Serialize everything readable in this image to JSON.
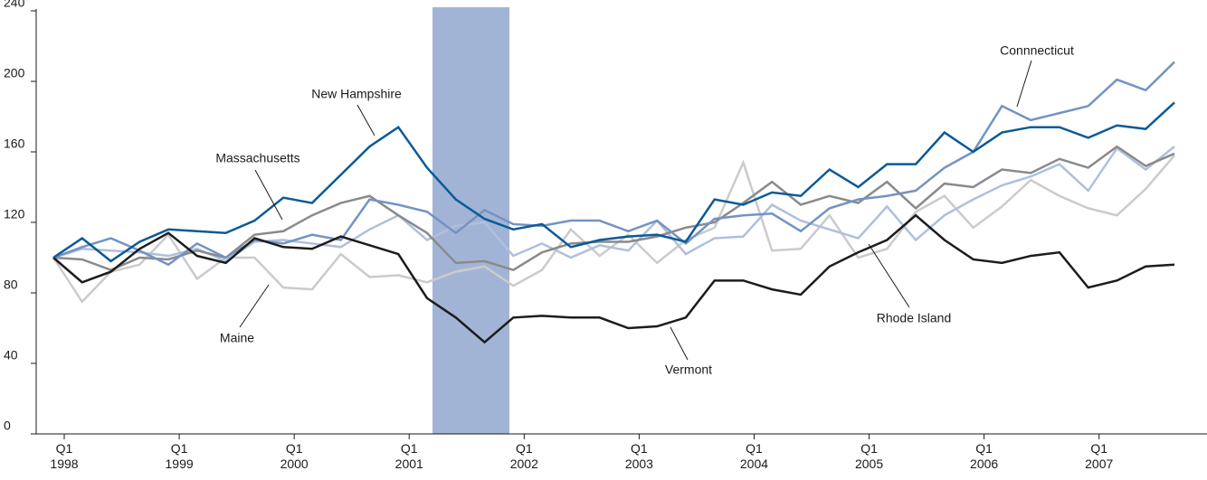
{
  "chart_data": {
    "type": "line",
    "categories": [
      "Q1 1998",
      null,
      null,
      null,
      "Q1 1999",
      null,
      null,
      null,
      "Q1 2000",
      null,
      null,
      null,
      "Q1 2001",
      null,
      null,
      null,
      "Q1 2002",
      null,
      null,
      null,
      "Q1 2003",
      null,
      null,
      null,
      "Q1 2004",
      null,
      null,
      null,
      "Q1 2005",
      null,
      null,
      null,
      "Q1 2006",
      null,
      null,
      null,
      "Q1 2007",
      null,
      null,
      null
    ],
    "ylim": [
      0,
      240
    ],
    "yticks": [
      0,
      40,
      80,
      120,
      160,
      200,
      240
    ],
    "series": [
      {
        "name": "New Hampshire",
        "color": "#0b5a97",
        "values": [
          100,
          111,
          98,
          109,
          116,
          115,
          114,
          121,
          134,
          131,
          147,
          163,
          174,
          151,
          133,
          122,
          116,
          119,
          106,
          110,
          112,
          113,
          109,
          133,
          130,
          137,
          135,
          150,
          140,
          153,
          153,
          171,
          160,
          171,
          174,
          174,
          168,
          175,
          173,
          188
        ]
      },
      {
        "name": "Connnecticut",
        "color": "#7393c4",
        "values": [
          100,
          106,
          111,
          104,
          96,
          108,
          100,
          110,
          108,
          113,
          110,
          133,
          130,
          126,
          114,
          127,
          119,
          118,
          121,
          121,
          115,
          121,
          108,
          122,
          124,
          125,
          115,
          128,
          133,
          135,
          138,
          151,
          160,
          186,
          178,
          182,
          186,
          201,
          195,
          211
        ]
      },
      {
        "name": "Massachusetts",
        "color": "#8a8a8c",
        "values": [
          100,
          99,
          93,
          100,
          99,
          104,
          100,
          113,
          115,
          124,
          131,
          135,
          124,
          114,
          97,
          98,
          93,
          103,
          108,
          109,
          109,
          112,
          117,
          120,
          131,
          143,
          130,
          135,
          131,
          143,
          128,
          142,
          140,
          150,
          148,
          156,
          151,
          163,
          152,
          159
        ]
      },
      {
        "name": "Rhode Island",
        "color": "#afc0dc",
        "values": [
          100,
          105,
          104,
          103,
          101,
          105,
          98,
          109,
          110,
          108,
          106,
          116,
          124,
          110,
          118,
          120,
          101,
          108,
          100,
          107,
          104,
          121,
          102,
          111,
          112,
          130,
          121,
          116,
          111,
          129,
          110,
          124,
          133,
          141,
          146,
          153,
          138,
          162,
          150,
          163
        ]
      },
      {
        "name": "Maine",
        "color": "#cbcbcb",
        "values": [
          100,
          75,
          92,
          96,
          113,
          88,
          100,
          100,
          83,
          82,
          102,
          89,
          90,
          86,
          92,
          95,
          84,
          93,
          116,
          101,
          113,
          97,
          110,
          117,
          154,
          104,
          105,
          124,
          100,
          105,
          126,
          135,
          117,
          129,
          144,
          135,
          128,
          124,
          139,
          158
        ]
      },
      {
        "name": "Vermont",
        "color": "#1c1c1c",
        "values": [
          100,
          86,
          92,
          105,
          114,
          101,
          97,
          111,
          106,
          105,
          112,
          107,
          102,
          77,
          66,
          52,
          66,
          67,
          66,
          66,
          60,
          61,
          66,
          87,
          87,
          82,
          79,
          95,
          103,
          110,
          124,
          110,
          99,
          97,
          101,
          103,
          83,
          87,
          95,
          96
        ]
      }
    ]
  }
}
